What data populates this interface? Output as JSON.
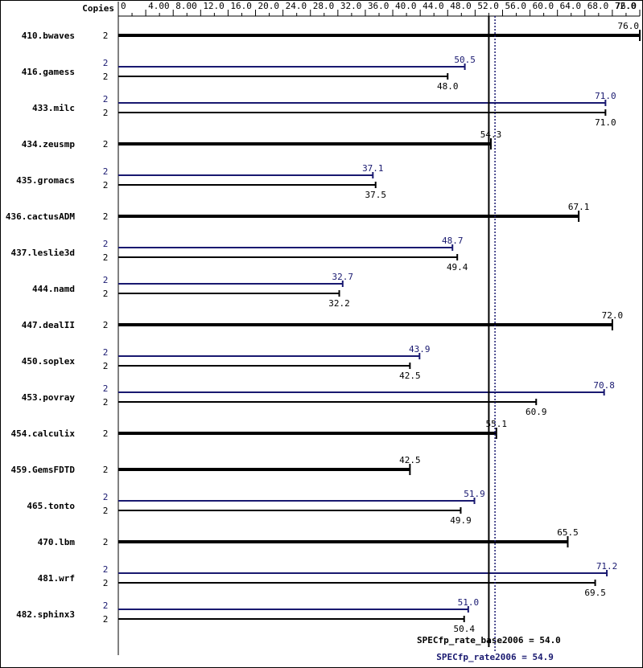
{
  "chart_data": {
    "type": "bar",
    "orientation": "horizontal",
    "header_label": "Copies",
    "x_ticks": [
      "0",
      "4.00",
      "8.00",
      "12.0",
      "16.0",
      "20.0",
      "24.0",
      "28.0",
      "32.0",
      "36.0",
      "40.0",
      "44.0",
      "48.0",
      "52.0",
      "56.0",
      "60.0",
      "64.0",
      "68.0",
      "72.0",
      "76.0"
    ],
    "xlim": [
      0,
      76
    ],
    "colors": {
      "base": "#000000",
      "peak": "#191970"
    },
    "reference_lines": [
      {
        "label": "SPECfp_rate_base2006 = 54.0",
        "value": 54.0,
        "color": "#000000",
        "style": "solid"
      },
      {
        "label": "SPECfp_rate2006 = 54.9",
        "value": 54.9,
        "color": "#191970",
        "style": "dotted"
      }
    ],
    "benchmarks": [
      {
        "name": "410.bwaves",
        "copies": "2",
        "base": 76.0,
        "base_label": "76.0"
      },
      {
        "name": "416.gamess",
        "copies": "2",
        "peak": 50.5,
        "peak_label": "50.5",
        "peak_copies": "2",
        "base": 48.0,
        "base_label": "48.0"
      },
      {
        "name": "433.milc",
        "copies": "2",
        "peak": 71.0,
        "peak_label": "71.0",
        "peak_copies": "2",
        "base": 71.0,
        "base_label": "71.0"
      },
      {
        "name": "434.zeusmp",
        "copies": "2",
        "base": 54.3,
        "base_label": "54.3"
      },
      {
        "name": "435.gromacs",
        "copies": "2",
        "peak": 37.1,
        "peak_label": "37.1",
        "peak_copies": "2",
        "base": 37.5,
        "base_label": "37.5"
      },
      {
        "name": "436.cactusADM",
        "copies": "2",
        "base": 67.1,
        "base_label": "67.1"
      },
      {
        "name": "437.leslie3d",
        "copies": "2",
        "peak": 48.7,
        "peak_label": "48.7",
        "peak_copies": "2",
        "base": 49.4,
        "base_label": "49.4"
      },
      {
        "name": "444.namd",
        "copies": "2",
        "peak": 32.7,
        "peak_label": "32.7",
        "peak_copies": "2",
        "base": 32.2,
        "base_label": "32.2"
      },
      {
        "name": "447.dealII",
        "copies": "2",
        "base": 72.0,
        "base_label": "72.0"
      },
      {
        "name": "450.soplex",
        "copies": "2",
        "peak": 43.9,
        "peak_label": "43.9",
        "peak_copies": "2",
        "base": 42.5,
        "base_label": "42.5"
      },
      {
        "name": "453.povray",
        "copies": "2",
        "peak": 70.8,
        "peak_label": "70.8",
        "peak_copies": "2",
        "base": 60.9,
        "base_label": "60.9"
      },
      {
        "name": "454.calculix",
        "copies": "2",
        "base": 55.1,
        "base_label": "55.1"
      },
      {
        "name": "459.GemsFDTD",
        "copies": "2",
        "base": 42.5,
        "base_label": "42.5"
      },
      {
        "name": "465.tonto",
        "copies": "2",
        "peak": 51.9,
        "peak_label": "51.9",
        "peak_copies": "2",
        "base": 49.9,
        "base_label": "49.9"
      },
      {
        "name": "470.lbm",
        "copies": "2",
        "base": 65.5,
        "base_label": "65.5"
      },
      {
        "name": "481.wrf",
        "copies": "2",
        "peak": 71.2,
        "peak_label": "71.2",
        "peak_copies": "2",
        "base": 69.5,
        "base_label": "69.5"
      },
      {
        "name": "482.sphinx3",
        "copies": "2",
        "peak": 51.0,
        "peak_label": "51.0",
        "peak_copies": "2",
        "base": 50.4,
        "base_label": "50.4"
      }
    ]
  }
}
